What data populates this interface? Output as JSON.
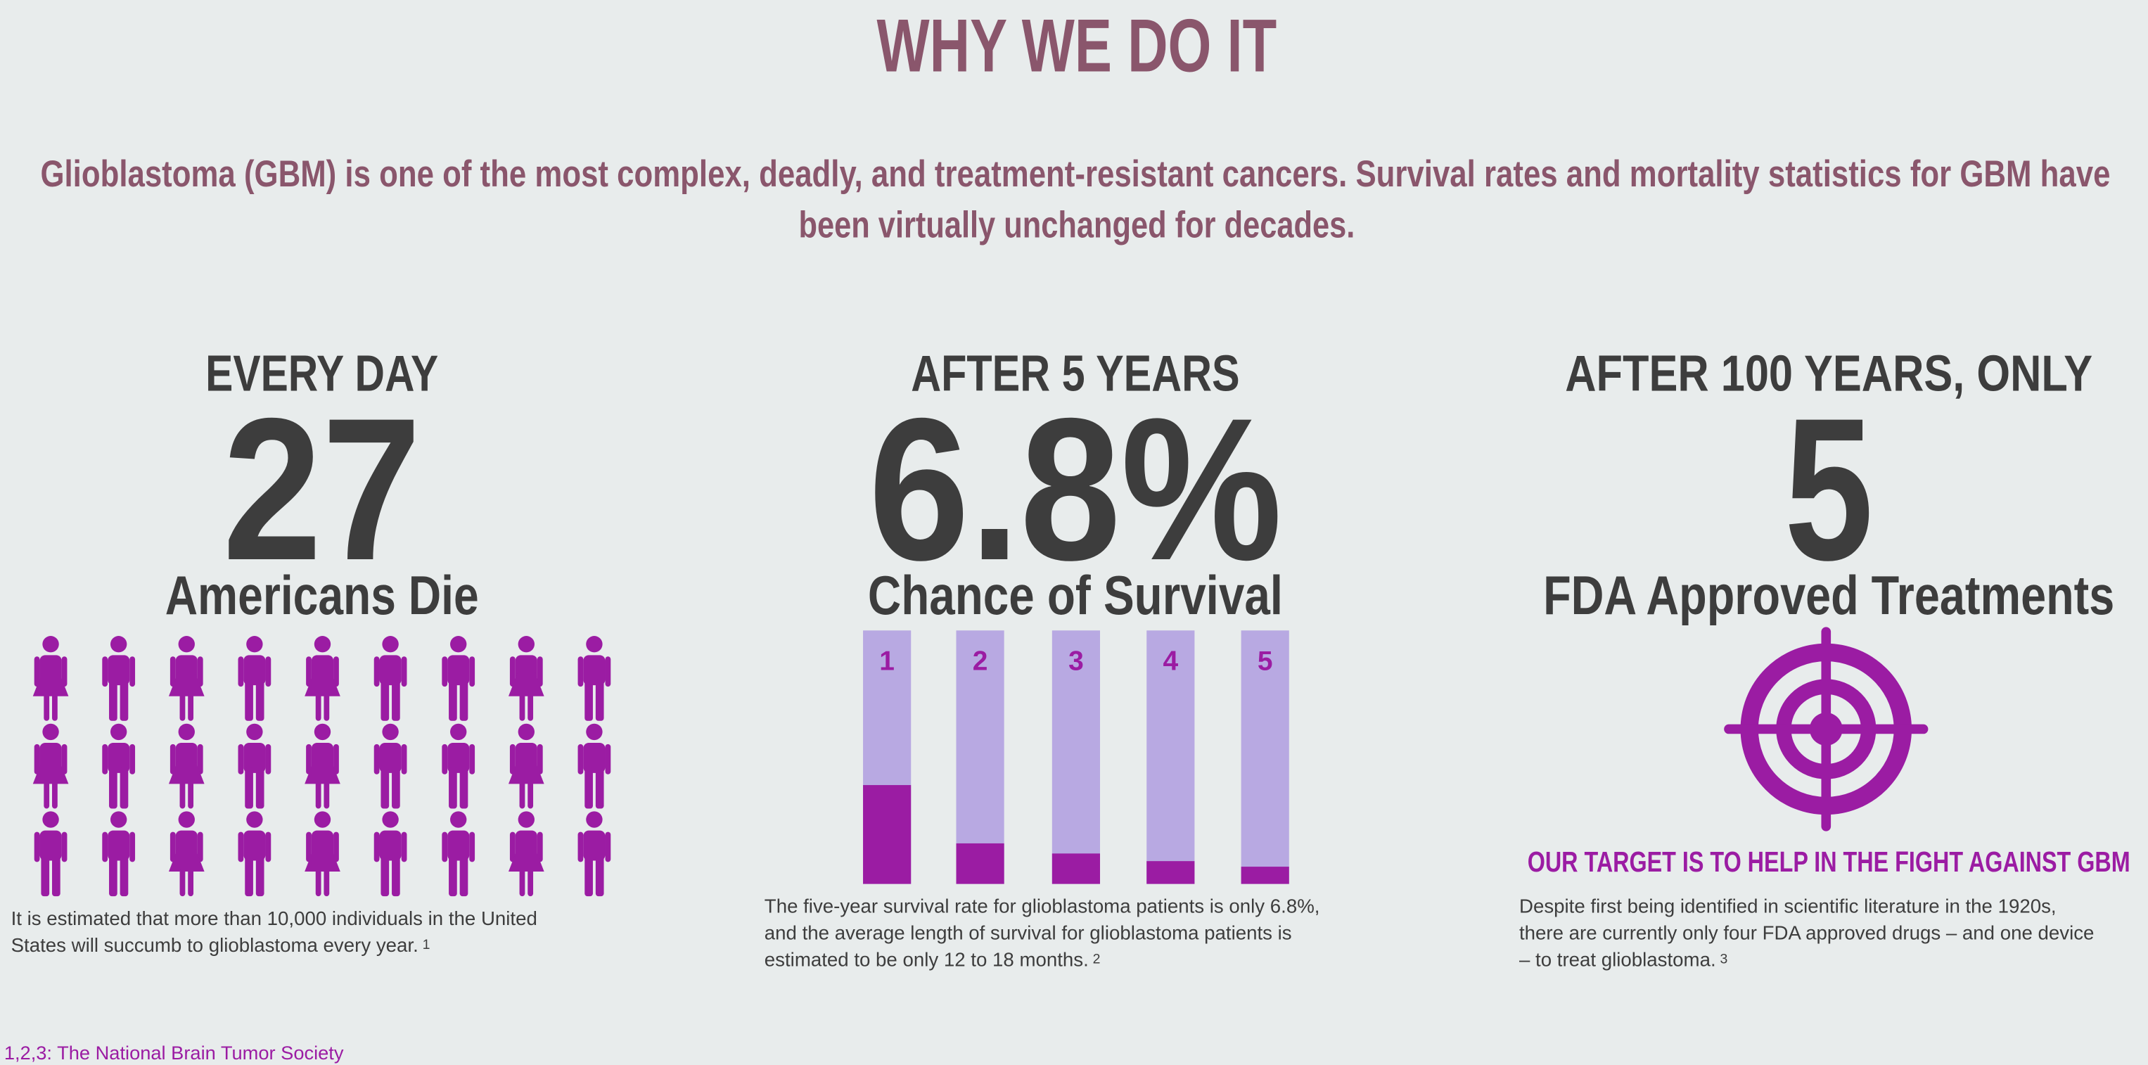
{
  "header": {
    "title": "WHY WE DO IT",
    "intro_lines": [
      "Glioblastoma (GBM) is one of the most complex, deadly, and treatment-resistant cancers.  Survival rates and mortality statistics for GBM have",
      "been virtually unchanged for decades."
    ]
  },
  "stats": [
    {
      "heading": "EVERY DAY",
      "number": "27",
      "label": "Americans Die",
      "caption_lines": [
        "It is estimated that more than 10,000 individuals in the United",
        "States will succumb to glioblastoma every year."
      ],
      "note": "1"
    },
    {
      "heading": "AFTER 5 YEARS",
      "number": "6.8%",
      "label": "Chance of Survival",
      "survival_chart": {
        "type": "bar",
        "categories": [
          "1",
          "2",
          "3",
          "4",
          "5"
        ],
        "values": [
          39,
          16,
          12,
          9,
          6.8
        ],
        "ylim": [
          0,
          100
        ],
        "color": "#9b1ca3",
        "track_color": "#b8a9e2"
      },
      "caption_lines": [
        "The five-year survival rate for glioblastoma patients is only 6.8%,",
        "and the average length of survival for glioblastoma patients is",
        "estimated to be only 12 to 18 months."
      ],
      "note": "2"
    },
    {
      "heading": "AFTER 100 YEARS, ONLY",
      "number": "5",
      "label": "FDA Approved Treatments",
      "tagline": "OUR TARGET IS TO HELP IN THE FIGHT AGAINST GBM",
      "caption_lines": [
        "Despite first being identified in scientific literature in the 1920s,",
        "there are currently only four FDA approved drugs – and one device",
        "– to treat glioblastoma."
      ],
      "note": "3"
    }
  ],
  "footer": "1,2,3: The National Brain Tumor Society"
}
